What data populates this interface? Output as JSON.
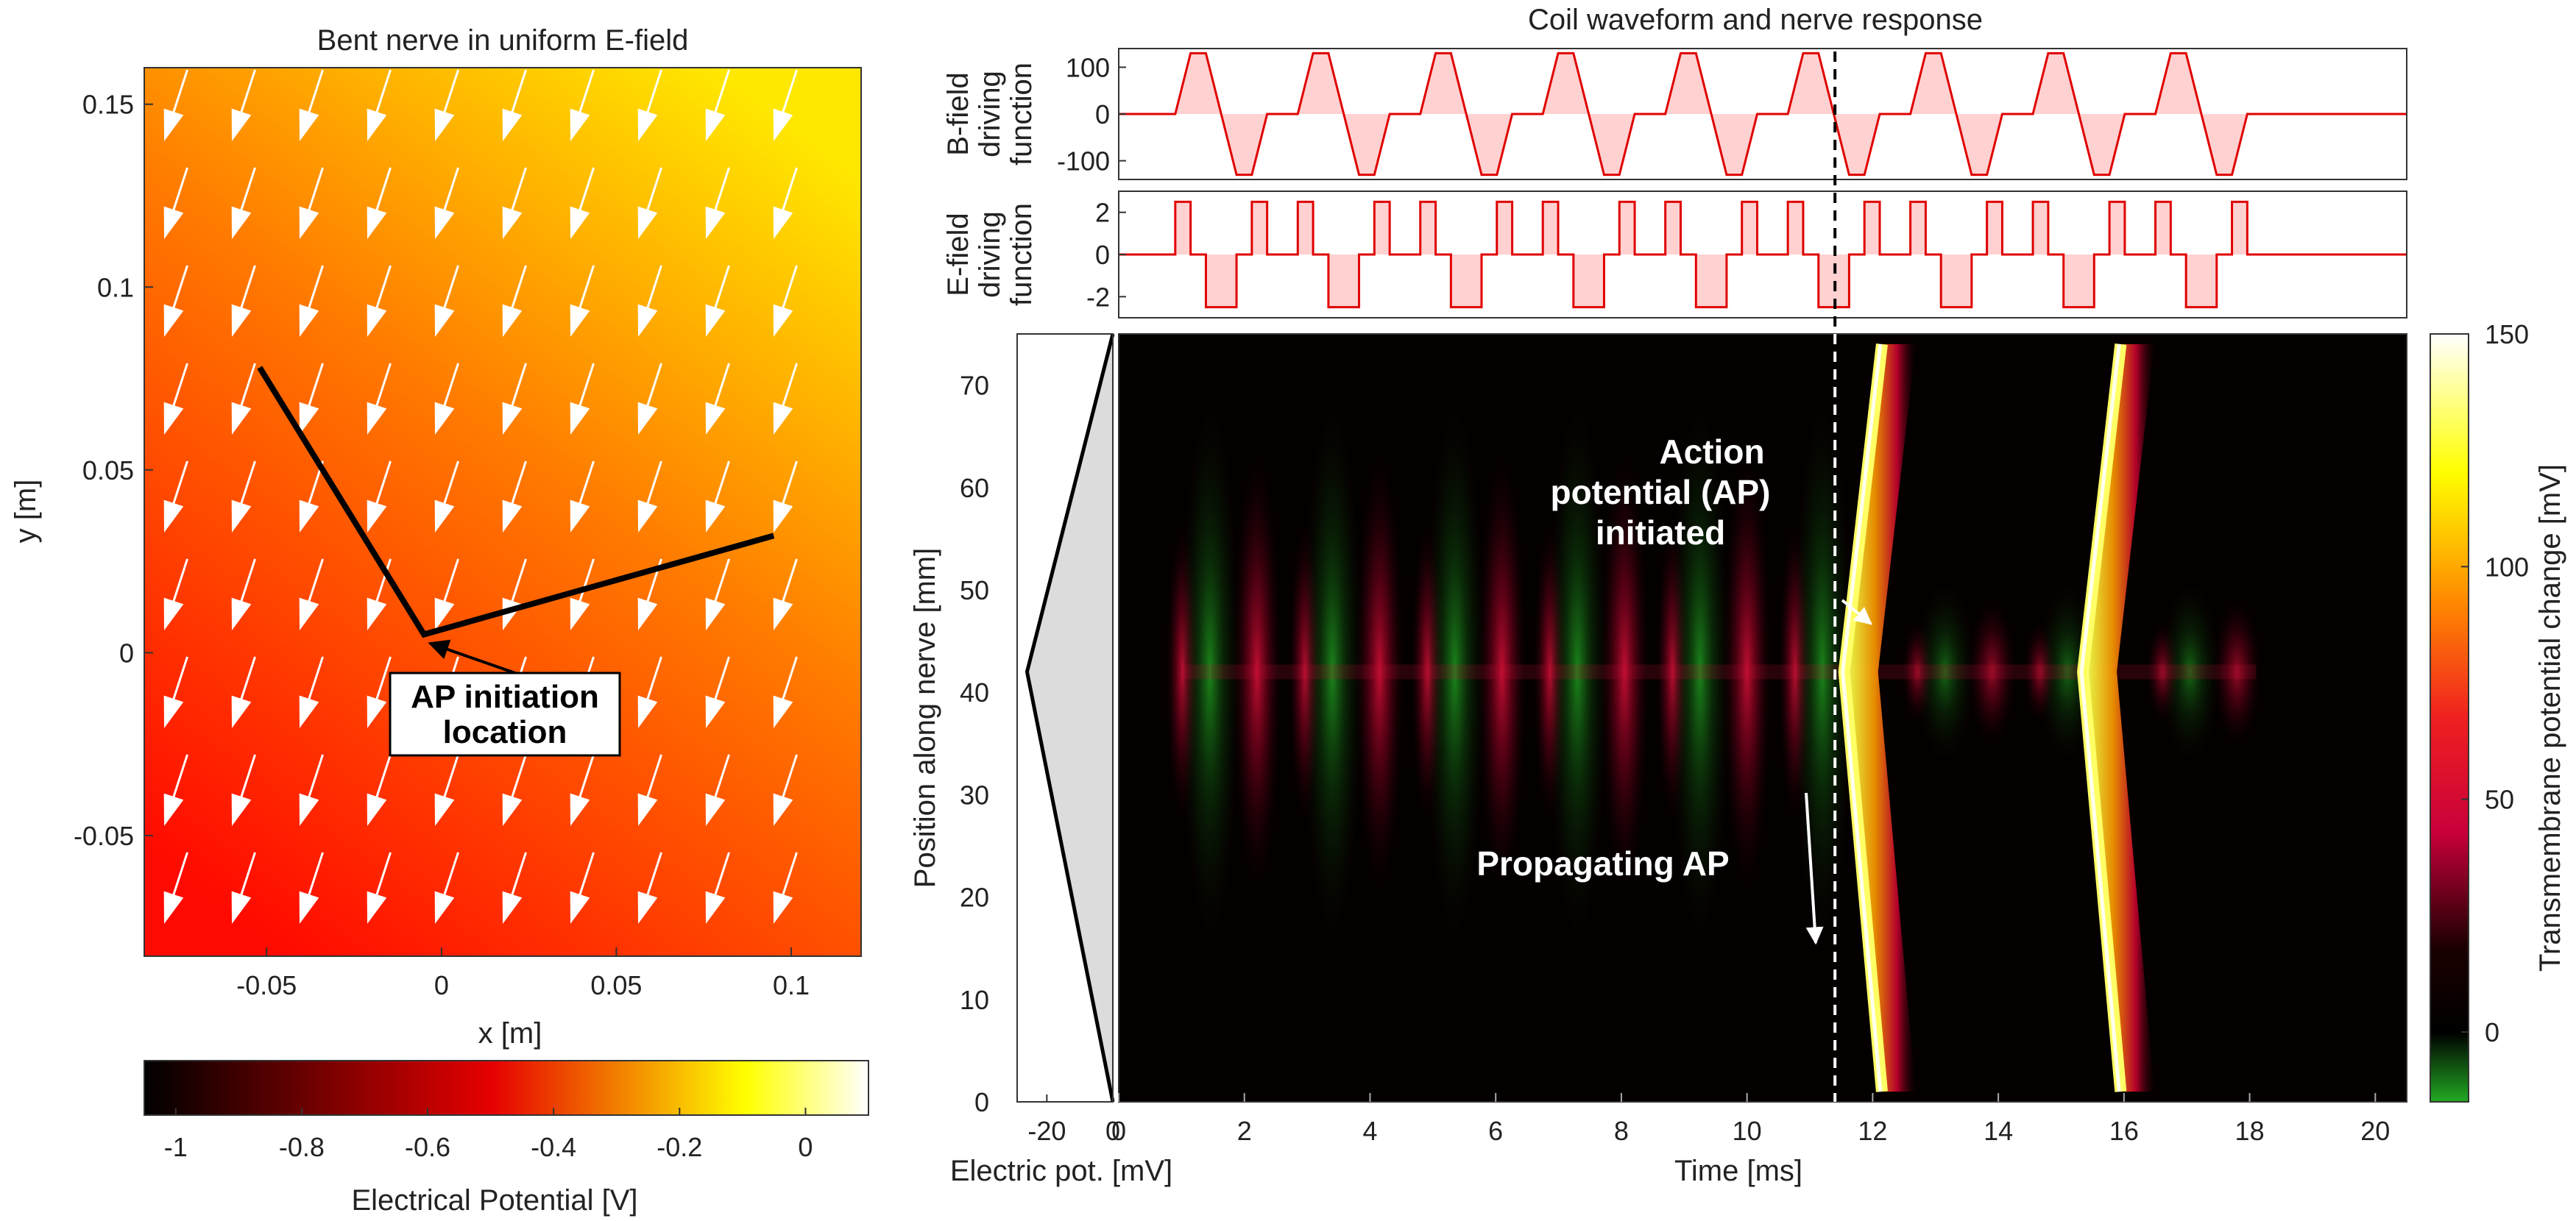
{
  "chart_data": [
    {
      "type": "heatmap",
      "title": "Bent nerve in uniform E-field",
      "xlabel": "x [m]",
      "ylabel": "y [m]",
      "xlim": [
        -0.085,
        0.12
      ],
      "ylim": [
        -0.083,
        0.16
      ],
      "xticks": [
        -0.05,
        0,
        0.05,
        0.1
      ],
      "xtick_labels": [
        "-0.05",
        "0",
        "0.05",
        "0.1"
      ],
      "yticks": [
        -0.05,
        0,
        0.05,
        0.1,
        0.15
      ],
      "ytick_labels": [
        "-0.05",
        "0",
        "0.05",
        "0.1",
        "0.15"
      ],
      "nerve_path": [
        [
          -0.052,
          0.078
        ],
        [
          -0.005,
          0.005
        ],
        [
          0.095,
          0.032
        ]
      ],
      "potential_range_V": [
        -1.05,
        0.1
      ],
      "annotation": {
        "line1": "AP initiation",
        "line2": "location",
        "target": [
          -0.005,
          0.005
        ]
      },
      "colorbar": {
        "label": "Electrical Potential [V]",
        "ticks": [
          -1,
          -0.8,
          -0.6,
          -0.4,
          -0.2,
          0
        ],
        "tick_labels": [
          "-1",
          "-0.8",
          "-0.6",
          "-0.4",
          "-0.2",
          "0"
        ],
        "range": [
          -1.05,
          0.1
        ],
        "colors": [
          "#000000",
          "#e60000",
          "#ffff00",
          "#ffffff"
        ]
      }
    },
    {
      "type": "line",
      "title": "Coil waveform and nerve response",
      "ylabel_lines": [
        "B-field",
        "driving",
        "function"
      ],
      "ylim": [
        -140,
        140
      ],
      "yticks": [
        -100,
        0,
        100
      ],
      "ytick_labels": [
        "-100",
        "0",
        "100"
      ],
      "xlim": [
        0,
        20.5
      ],
      "pulses_start_ms": [
        0.9,
        2.85,
        4.8,
        6.75,
        8.7,
        10.65,
        12.6,
        14.55,
        16.5
      ],
      "pulse_period_ms": 1.95,
      "amplitude": 130,
      "color": "#e00000"
    },
    {
      "type": "line",
      "ylabel_lines": [
        "E-field",
        "driving",
        "function"
      ],
      "ylim": [
        -3,
        3
      ],
      "yticks": [
        -2,
        0,
        2
      ],
      "ytick_labels": [
        "-2",
        "0",
        "2"
      ],
      "xlim": [
        0,
        20.5
      ],
      "amplitude": 2.5,
      "color": "#e00000"
    },
    {
      "type": "heatmap",
      "xlabel": "Time [ms]",
      "ylabel": "Position along nerve [mm]",
      "xlim": [
        0,
        20.5
      ],
      "ylim": [
        0,
        75
      ],
      "xticks": [
        0,
        2,
        4,
        6,
        8,
        10,
        12,
        14,
        16,
        18,
        20
      ],
      "xtick_labels": [
        "0",
        "2",
        "4",
        "6",
        "8",
        "10",
        "12",
        "14",
        "16",
        "18",
        "20"
      ],
      "yticks": [
        0,
        10,
        20,
        30,
        40,
        50,
        60,
        70
      ],
      "ytick_labels": [
        "0",
        "10",
        "20",
        "30",
        "40",
        "50",
        "60",
        "70"
      ],
      "ap_initiation_time_ms": 11.4,
      "ap_wavefronts": [
        {
          "start_ms": 11.5,
          "peak_position_mm": 42,
          "end_ms": 12.1
        },
        {
          "start_ms": 15.3,
          "peak_position_mm": 42,
          "end_ms": 15.9
        }
      ],
      "annotations": {
        "initiated": [
          "Action",
          "potential (AP)",
          "initiated"
        ],
        "propagating": "Propagating AP"
      },
      "colorbar": {
        "label": "Transmembrane potential change [mV]",
        "ticks": [
          0,
          50,
          100,
          150
        ],
        "tick_labels": [
          "0",
          "50",
          "100",
          "150"
        ],
        "range": [
          -15,
          150
        ]
      }
    },
    {
      "type": "area",
      "xlabel": "Electric pot. [mV]",
      "xlim": [
        -29,
        0
      ],
      "xticks": [
        -20,
        0
      ],
      "xtick_labels": [
        "-20",
        "0"
      ],
      "ylim": [
        0,
        75
      ],
      "points": [
        [
          0,
          0
        ],
        [
          -26,
          42
        ],
        [
          0,
          75
        ]
      ]
    }
  ]
}
